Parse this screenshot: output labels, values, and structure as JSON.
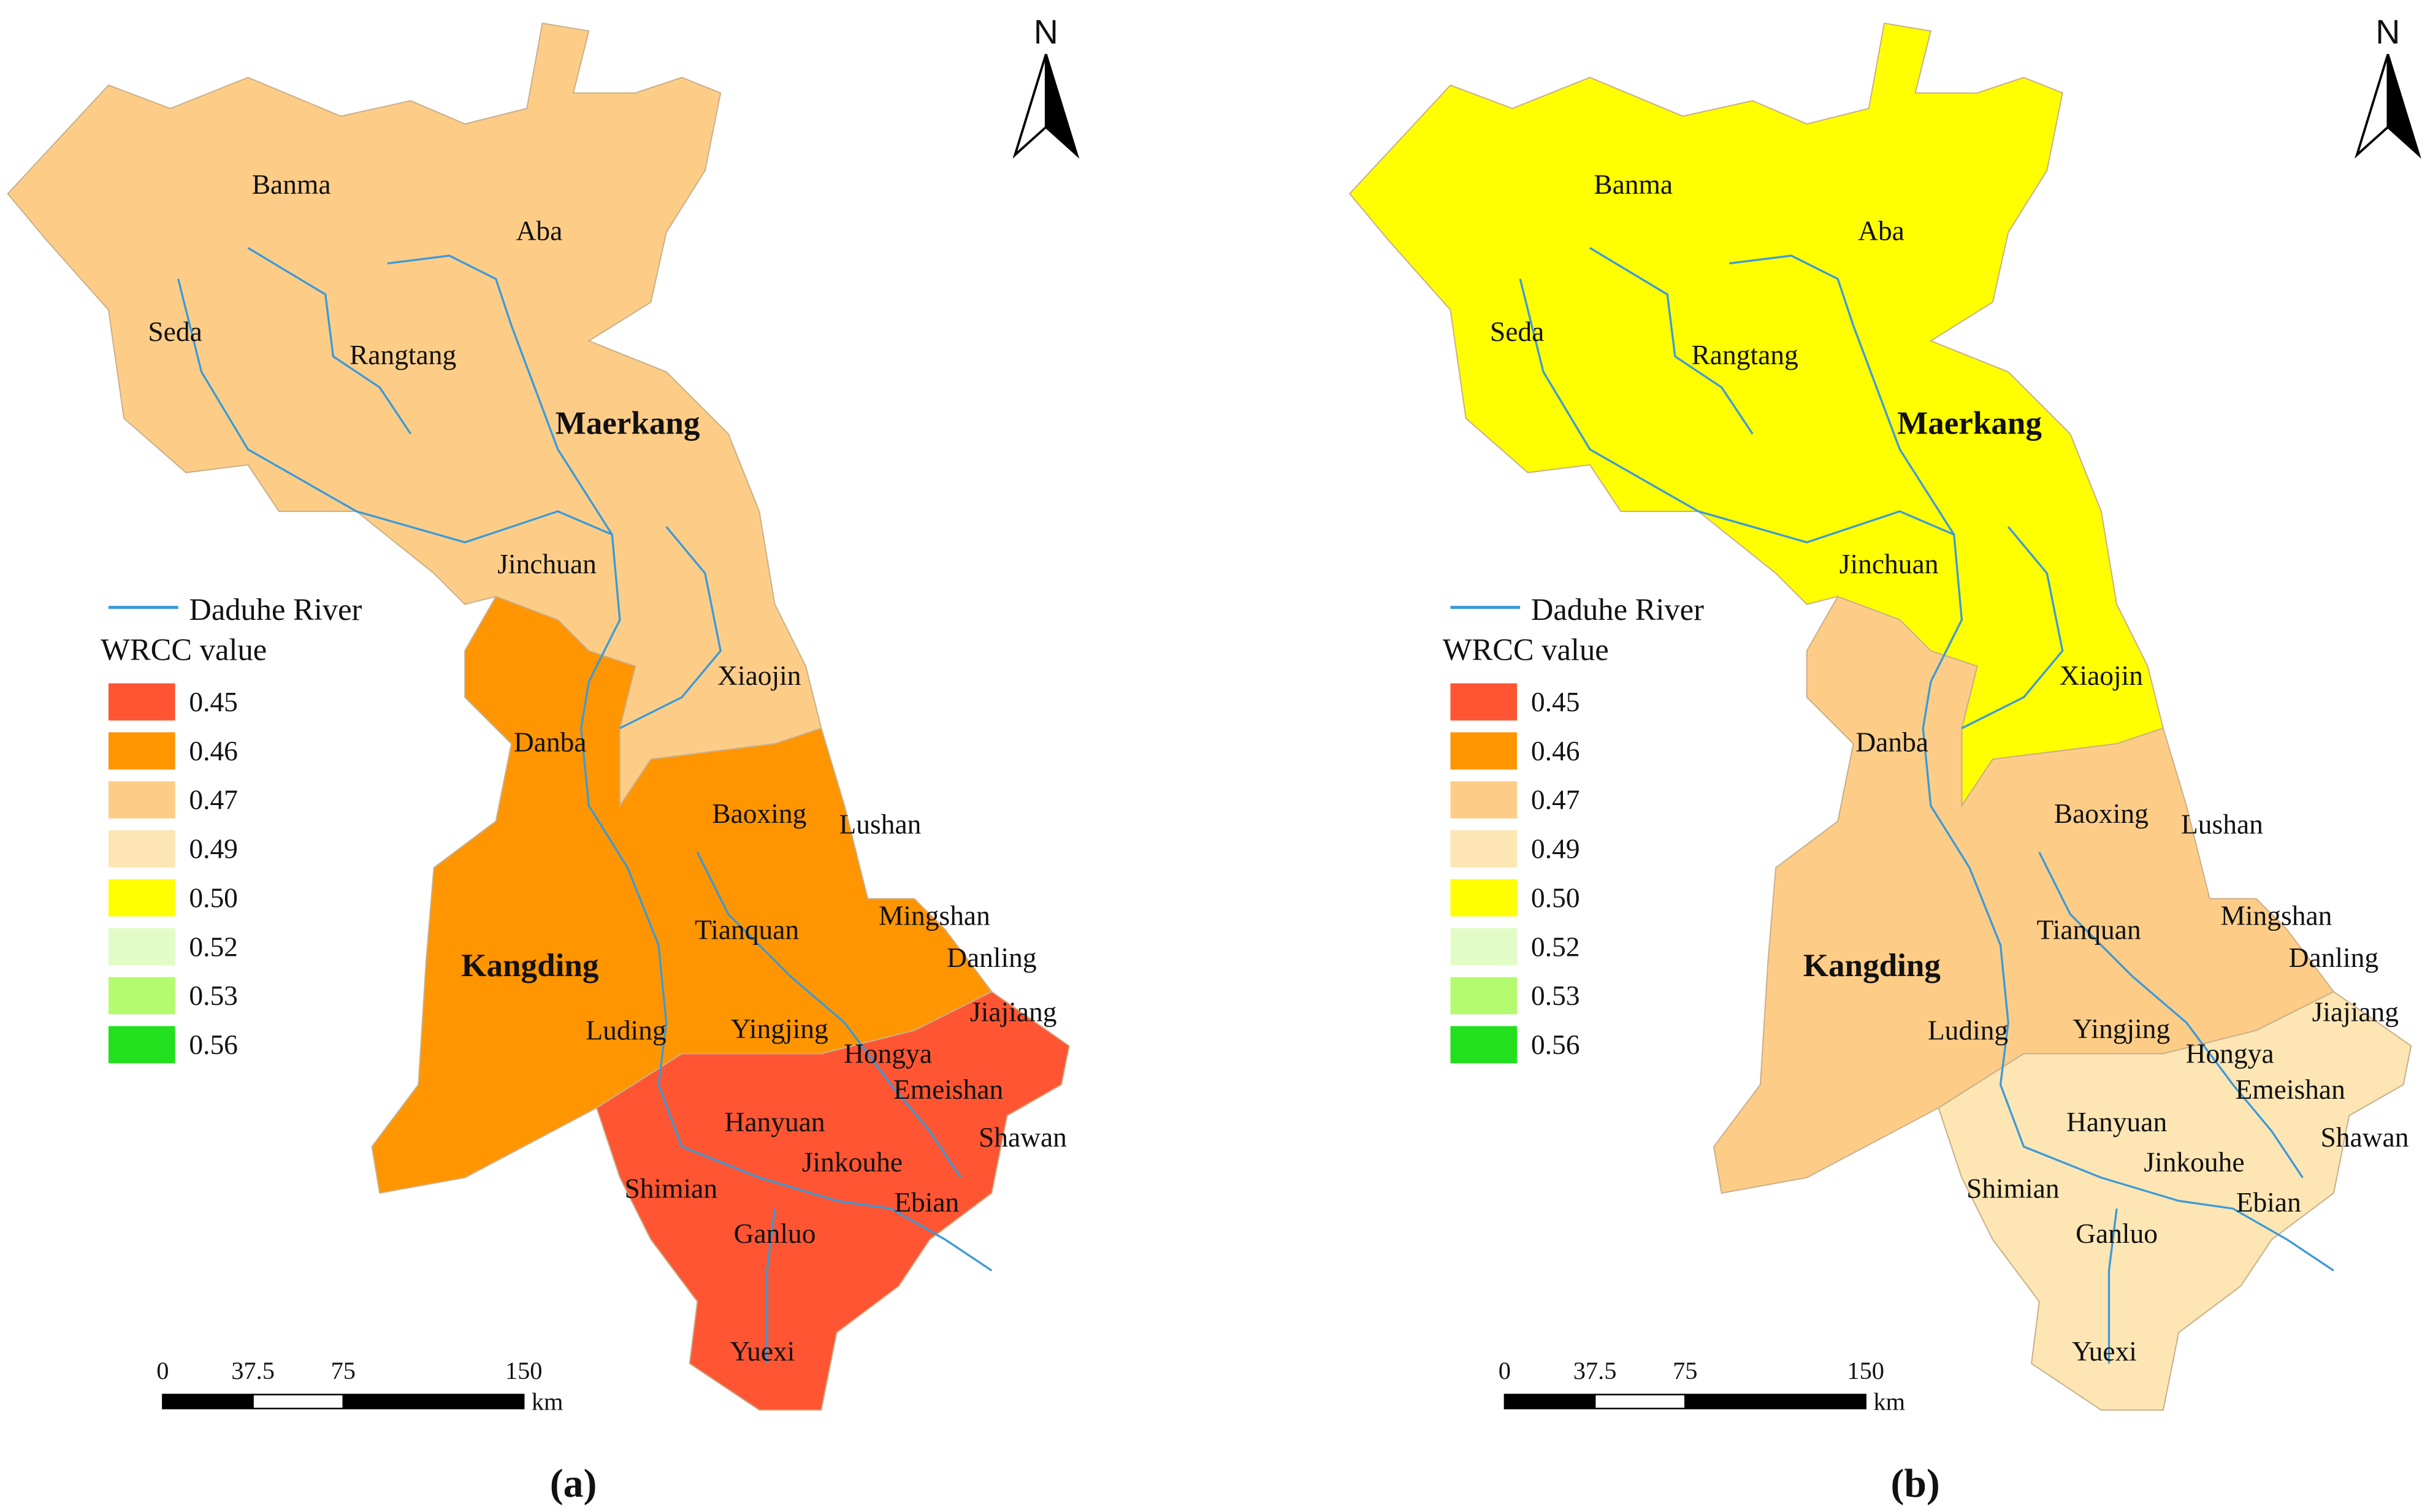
{
  "panels": [
    {
      "caption": "(a)",
      "north": "N",
      "counties": [
        "Banma",
        "Aba",
        "Seda",
        "Rangtang",
        "Maerkang",
        "Jinchuan",
        "Xiaojin",
        "Danba",
        "Baoxing",
        "Lushan",
        "Mingshan",
        "Tianquan",
        "Danling",
        "Kangding",
        "Jiajiang",
        "Luding",
        "Yingjing",
        "Hongya",
        "Emeishan",
        "Hanyuan",
        "Shawan",
        "Jinkouhe",
        "Shimian",
        "Ebian",
        "Ganluo",
        "Yuexi"
      ],
      "zone_colors": [
        "#fdcd88",
        "#ff9500",
        "#ff5533"
      ],
      "legend": {
        "river": "Daduhe River",
        "title": "WRCC value",
        "items": [
          {
            "label": "0.45",
            "color": "#ff5533"
          },
          {
            "label": "0.46",
            "color": "#ff9500"
          },
          {
            "label": "0.47",
            "color": "#fdcd88"
          },
          {
            "label": "0.49",
            "color": "#fde6b4"
          },
          {
            "label": "0.50",
            "color": "#ffff00"
          },
          {
            "label": "0.52",
            "color": "#e2fcc8"
          },
          {
            "label": "0.53",
            "color": "#b4fa6e"
          },
          {
            "label": "0.56",
            "color": "#22e01e"
          }
        ]
      },
      "scale": {
        "ticks": [
          0,
          37.5,
          75,
          150
        ],
        "unit": "km"
      }
    },
    {
      "caption": "(b)",
      "north": "N",
      "counties": [
        "Banma",
        "Aba",
        "Seda",
        "Rangtang",
        "Maerkang",
        "Jinchuan",
        "Xiaojin",
        "Danba",
        "Baoxing",
        "Lushan",
        "Mingshan",
        "Tianquan",
        "Danling",
        "Kangding",
        "Jiajiang",
        "Luding",
        "Yingjing",
        "Hongya",
        "Emeishan",
        "Hanyuan",
        "Shawan",
        "Jinkouhe",
        "Shimian",
        "Ebian",
        "Ganluo",
        "Yuexi"
      ],
      "zone_colors": [
        "#ffff00",
        "#fdcd88",
        "#fde6b4"
      ],
      "legend": {
        "river": "Daduhe River",
        "title": "WRCC value",
        "items": [
          {
            "label": "0.45",
            "color": "#ff5533"
          },
          {
            "label": "0.46",
            "color": "#ff9500"
          },
          {
            "label": "0.47",
            "color": "#fdcd88"
          },
          {
            "label": "0.49",
            "color": "#fde6b4"
          },
          {
            "label": "0.50",
            "color": "#ffff00"
          },
          {
            "label": "0.52",
            "color": "#e2fcc8"
          },
          {
            "label": "0.53",
            "color": "#b4fa6e"
          },
          {
            "label": "0.56",
            "color": "#22e01e"
          }
        ]
      },
      "scale": {
        "ticks": [
          0,
          37.5,
          75,
          150
        ],
        "unit": "km"
      }
    }
  ]
}
